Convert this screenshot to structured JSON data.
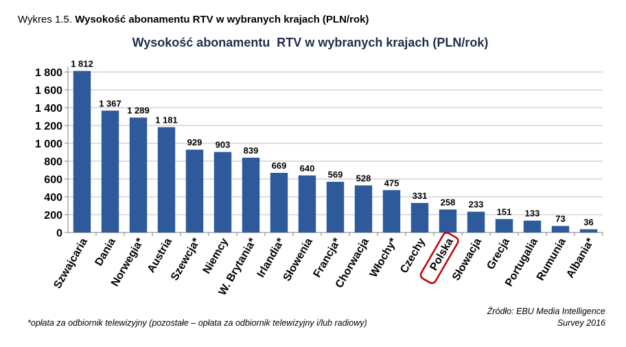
{
  "caption": {
    "prefix": "Wykres 1.5.",
    "title": "Wysokość abonamentu RTV w wybranych krajach (PLN/rok)"
  },
  "chart_data": {
    "type": "bar",
    "title": "Wysokość abonamentu  RTV w wybranych krajach (PLN/rok)",
    "xlabel": "",
    "ylabel": "",
    "ylim": [
      0,
      1800
    ],
    "yticks": [
      0,
      200,
      400,
      600,
      800,
      1000,
      1200,
      1400,
      1600,
      1800
    ],
    "ytick_labels": [
      "0",
      "200",
      "400",
      "600",
      "800",
      "1 000",
      "1 200",
      "1 400",
      "1 600",
      "1 800"
    ],
    "grid": true,
    "categories": [
      "Szwajcaria",
      "Dania",
      "Norwegia*",
      "Austria",
      "Szewcja*",
      "Niemcy",
      "W. Brytania*",
      "Irlandia*",
      "Słowenia",
      "Francja*",
      "Chorwacja",
      "Włochy*",
      "Czechy",
      "Polska",
      "Słowacja",
      "Grecja",
      "Portugalia",
      "Rumunia",
      "Albania*"
    ],
    "values": [
      1812,
      1367,
      1289,
      1181,
      929,
      903,
      839,
      669,
      640,
      569,
      528,
      475,
      331,
      258,
      233,
      151,
      133,
      73,
      36
    ],
    "value_labels": [
      "1 812",
      "1 367",
      "1 289",
      "1 181",
      "929",
      "903",
      "839",
      "669",
      "640",
      "569",
      "528",
      "475",
      "331",
      "258",
      "233",
      "151",
      "133",
      "73",
      "36"
    ],
    "highlight": "Polska",
    "bar_color": "#2e5a9c",
    "highlight_color": "#c00000"
  },
  "footnote": "*opłata za odbiornik telewizyjny (pozostałe – opłata za odbiornik telewizyjny i/lub radiowy)",
  "source": {
    "line1": "Źródło: EBU Media Intelligence",
    "line2": "Survey 2016"
  }
}
